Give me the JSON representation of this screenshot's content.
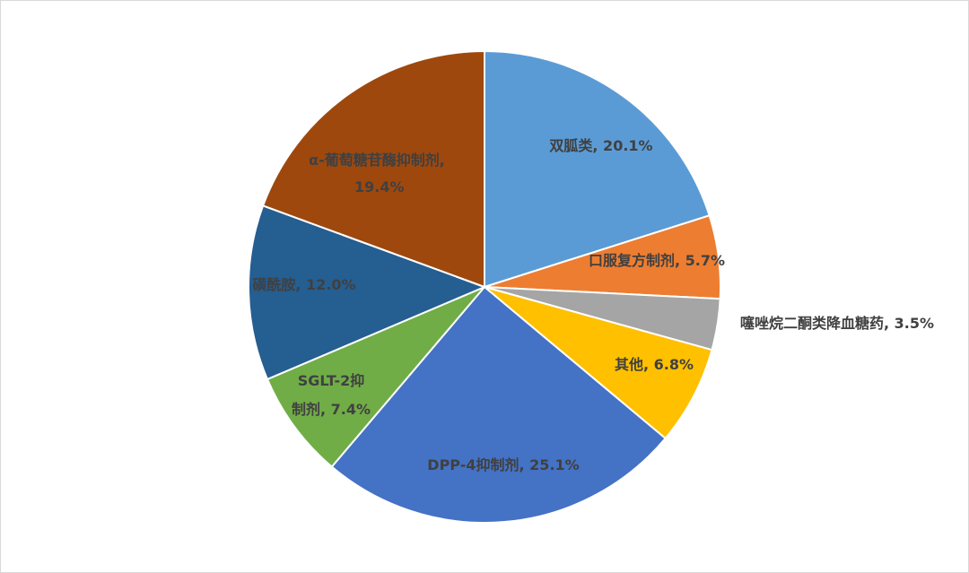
{
  "chart_data": {
    "type": "pie",
    "title": "",
    "slices": [
      {
        "name": "双胍类",
        "value": 20.1,
        "label": "双胍类, 20.1%",
        "color": "#5b9bd5"
      },
      {
        "name": "口服复方制剂",
        "value": 5.7,
        "label": "口服复方制剂, 5.7%",
        "color": "#ed7d31"
      },
      {
        "name": "噻唑烷二酮类降血糖药",
        "value": 3.5,
        "label": "噻唑烷二酮类降血糖药, 3.5%",
        "color": "#a5a5a5"
      },
      {
        "name": "其他",
        "value": 6.8,
        "label": "其他, 6.8%",
        "color": "#ffc000"
      },
      {
        "name": "DPP-4抑制剂",
        "value": 25.1,
        "label": "DPP-4抑制剂, 25.1%",
        "color": "#4472c4"
      },
      {
        "name": "SGLT-2抑制剂",
        "value": 7.4,
        "label": "SGLT-2抑制剂, 7.4%",
        "color": "#70ad47"
      },
      {
        "name": "磺酰胺",
        "value": 12.0,
        "label": "磺酰胺, 12.0%",
        "color": "#255e91"
      },
      {
        "name": "α-葡萄糖苷酶抑制剂",
        "value": 19.4,
        "label": "α-葡萄糖苷酶抑制剂, 19.4%",
        "color": "#9e480e"
      }
    ],
    "legend": "none"
  }
}
